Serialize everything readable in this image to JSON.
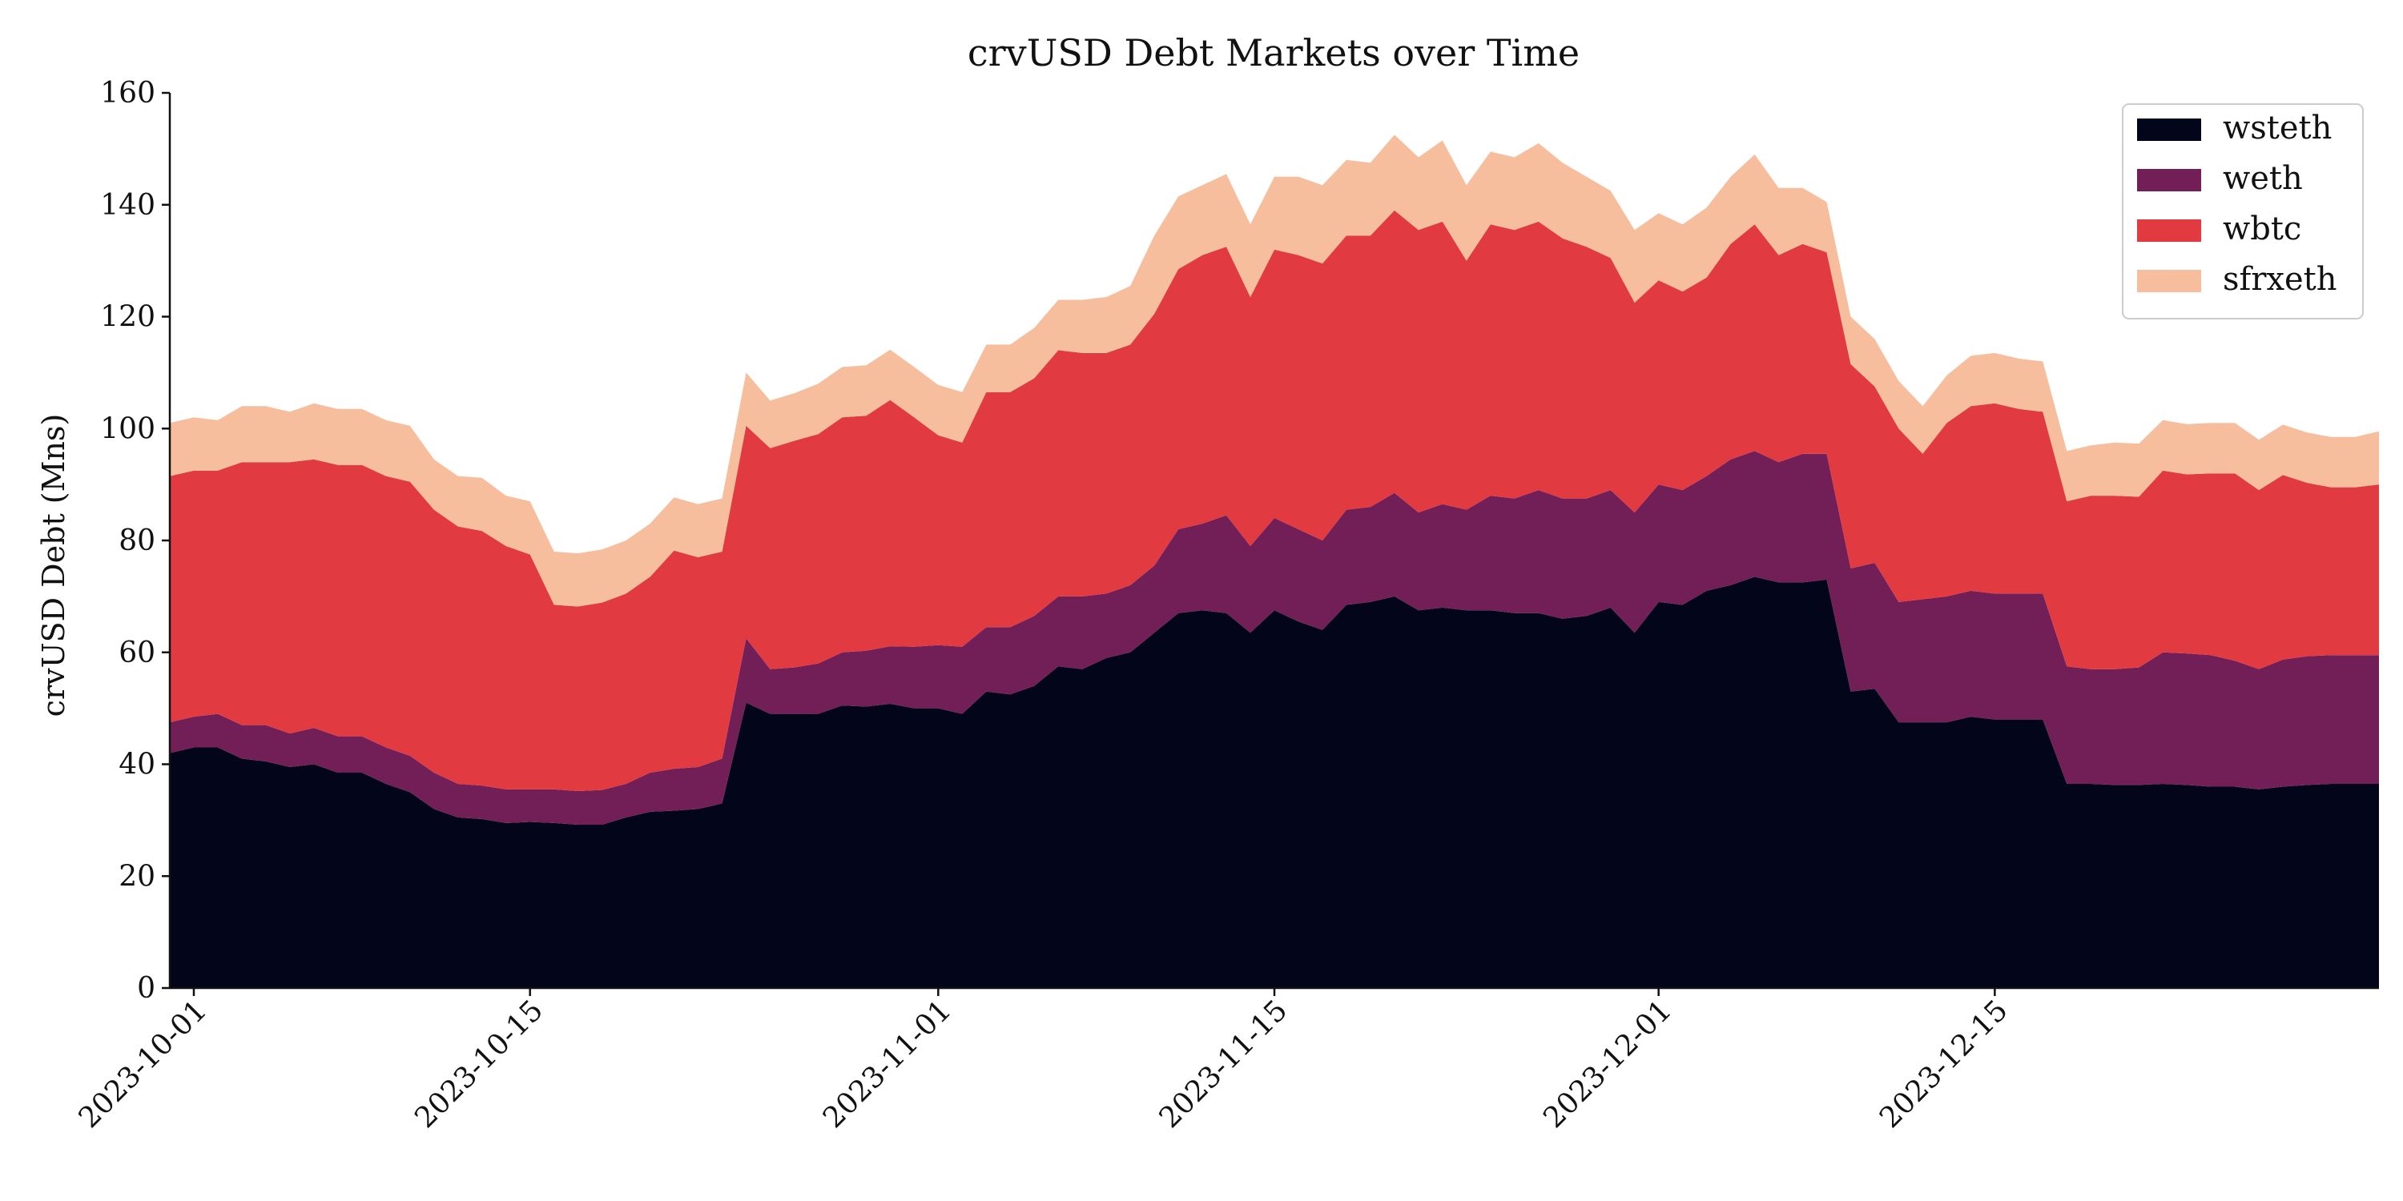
{
  "chart_data": {
    "type": "area",
    "stacked": true,
    "title": "crvUSD Debt Markets over Time",
    "xlabel": "",
    "ylabel": "crvUSD Debt (Mns)",
    "ylim": [
      0,
      160
    ],
    "yticks": [
      0,
      20,
      40,
      60,
      80,
      100,
      120,
      140,
      160
    ],
    "xticks": [
      "2023-10-01",
      "2023-10-15",
      "2023-11-01",
      "2023-11-15",
      "2023-12-01",
      "2023-12-15"
    ],
    "x_start": "2023-09-30",
    "x_end": "2023-12-31",
    "grid": false,
    "legend_position": "top-right",
    "series": [
      {
        "name": "wsteth",
        "color": "#03051a",
        "values": [
          42,
          43,
          43,
          41,
          40.5,
          39.5,
          40,
          38.5,
          38.5,
          36.5,
          35,
          32,
          30.5,
          30.2,
          29.5,
          29.7,
          29.5,
          29.2,
          29.2,
          30.5,
          31.5,
          31.7,
          32,
          33,
          51,
          49,
          49,
          49,
          50.5,
          50.3,
          50.8,
          50,
          50,
          49,
          53,
          52.5,
          54,
          57.5,
          57,
          59,
          60,
          63.5,
          67,
          67.5,
          67,
          63.5,
          67.5,
          65.5,
          64,
          68.5,
          69,
          70,
          67.5,
          68,
          67.5,
          67.5,
          67,
          67,
          66,
          66.5,
          68,
          63.5,
          69,
          68.5,
          71,
          72,
          73.5,
          72.5,
          72.5,
          73,
          53,
          53.5,
          47.5,
          47.5,
          47.5,
          48.5,
          48,
          48,
          48,
          36.5,
          36.5,
          36.3,
          36.3,
          36.5,
          36.3,
          36,
          36,
          35.5,
          36,
          36.3,
          36.5,
          36.5,
          36.5
        ]
      },
      {
        "name": "weth",
        "color": "#731f57",
        "values": [
          5.5,
          5.5,
          6,
          6,
          6.5,
          6,
          6.5,
          6.5,
          6.5,
          6.5,
          6.5,
          6.5,
          6,
          6,
          6,
          5.8,
          6,
          6,
          6.2,
          6,
          7,
          7.5,
          7.5,
          8,
          11.5,
          8,
          8.3,
          9,
          9.5,
          10,
          10.3,
          11,
          11.3,
          12,
          11.5,
          12,
          12.5,
          12.5,
          13,
          11.5,
          12,
          12,
          15,
          15.5,
          17.5,
          15.5,
          16.5,
          16.5,
          16,
          17,
          17,
          18.5,
          17.5,
          18.5,
          18,
          20.5,
          20.5,
          22,
          21.5,
          21,
          21,
          21.5,
          21,
          20.5,
          20.5,
          22.5,
          22.5,
          21.5,
          23,
          22.5,
          22,
          22.5,
          21.5,
          22,
          22.5,
          22.5,
          22.5,
          22.5,
          22.5,
          21,
          20.5,
          20.7,
          21,
          23.5,
          23.5,
          23.5,
          22.5,
          21.5,
          22.7,
          23,
          23,
          23,
          23
        ]
      },
      {
        "name": "wbtc",
        "color": "#e13a41",
        "values": [
          44,
          44,
          43.5,
          47,
          47,
          48.5,
          48,
          48.5,
          48.5,
          48.5,
          49,
          47,
          46,
          45.5,
          43.5,
          42,
          33,
          33,
          33.5,
          34,
          35,
          39,
          37.5,
          37,
          38,
          39.5,
          40.5,
          41,
          42,
          42,
          44,
          41,
          37.5,
          36.5,
          42,
          42,
          42.5,
          44,
          43.5,
          43,
          43,
          45,
          46.5,
          48,
          48,
          44.5,
          48,
          49,
          49.5,
          49,
          48.5,
          50.5,
          50.5,
          50.5,
          44.5,
          48.5,
          48,
          48,
          46.5,
          45,
          41.5,
          37.5,
          36.5,
          35.5,
          35.5,
          38.5,
          40.5,
          37,
          37.5,
          36,
          36.5,
          31.5,
          31,
          26,
          31,
          33,
          34,
          33,
          32.5,
          29.5,
          31,
          31,
          30.5,
          32.5,
          32,
          32.5,
          33.5,
          32,
          33,
          31,
          30,
          30,
          30.5
        ]
      },
      {
        "name": "sfrxeth",
        "color": "#f6be9d",
        "values": [
          9.5,
          9.5,
          9,
          10,
          10,
          9,
          10,
          10,
          10,
          10,
          10,
          9,
          9,
          9.5,
          9,
          9.5,
          9.5,
          9.5,
          9.5,
          9.5,
          9.5,
          9.5,
          9.5,
          9.5,
          9.5,
          8.5,
          8.5,
          9,
          9,
          9,
          9,
          9,
          9,
          9,
          8.5,
          8.5,
          9,
          9,
          9.5,
          10,
          10.5,
          14,
          13,
          12.5,
          13,
          13,
          13,
          14,
          14,
          13.5,
          13,
          13.5,
          13,
          14.5,
          13.5,
          13,
          13,
          14,
          13.5,
          12.5,
          12,
          13,
          12,
          12,
          12.5,
          12,
          12.5,
          12,
          10,
          9,
          8.5,
          8.5,
          8.5,
          8.5,
          8.5,
          9,
          9,
          9,
          9,
          9,
          9,
          9.5,
          9.5,
          9,
          9,
          9,
          9,
          9,
          9,
          9,
          9,
          9,
          9.5
        ]
      }
    ]
  }
}
